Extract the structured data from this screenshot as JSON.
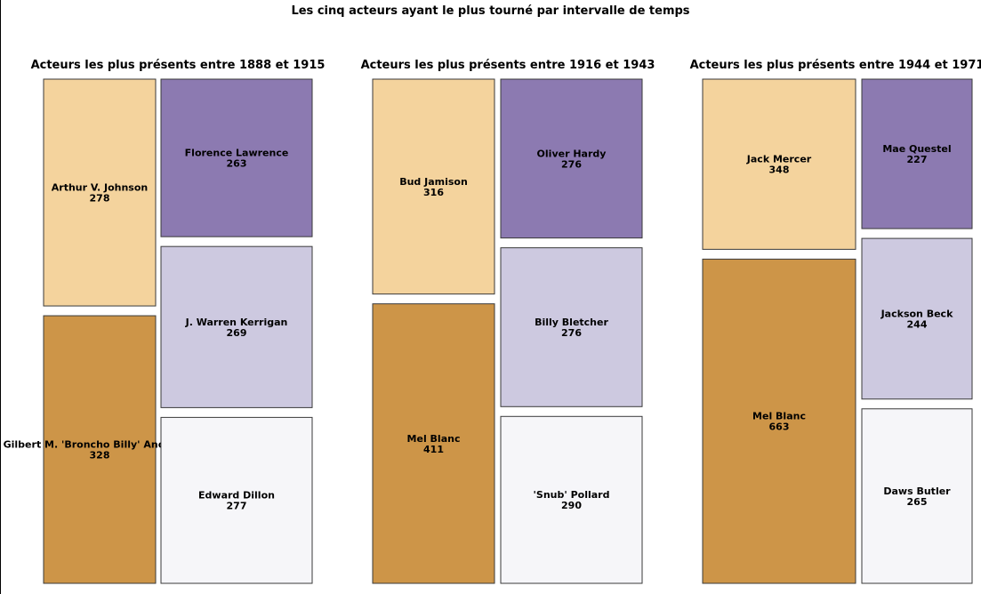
{
  "title": "Les cinq acteurs ayant le plus tourné par intervalle de temps",
  "colors": {
    "c1": "#f4d39d",
    "c2": "#8c7ab1",
    "c3": "#cdc9e0",
    "c4": "#cd9548",
    "c5": "#f6f6f9"
  },
  "chart_data": [
    {
      "type": "treemap",
      "title": "Acteurs les plus présents entre 1888 et 1915",
      "items": [
        {
          "name": "Arthur V. Johnson",
          "value": 278
        },
        {
          "name": "Florence Lawrence",
          "value": 263
        },
        {
          "name": "J. Warren Kerrigan",
          "value": 269
        },
        {
          "name": "Gilbert M. 'Broncho Billy' Anderson",
          "value": 328
        },
        {
          "name": "Edward Dillon",
          "value": 277
        }
      ]
    },
    {
      "type": "treemap",
      "title": "Acteurs les plus présents entre 1916 et 1943",
      "items": [
        {
          "name": "Bud Jamison",
          "value": 316
        },
        {
          "name": "Oliver Hardy",
          "value": 276
        },
        {
          "name": "Billy Bletcher",
          "value": 276
        },
        {
          "name": "Mel Blanc",
          "value": 411
        },
        {
          "name": "'Snub' Pollard",
          "value": 290
        }
      ]
    },
    {
      "type": "treemap",
      "title": "Acteurs les plus présents entre 1944 et 1971",
      "items": [
        {
          "name": "Jack Mercer",
          "value": 348
        },
        {
          "name": "Mae Questel",
          "value": 227
        },
        {
          "name": "Jackson Beck",
          "value": 244
        },
        {
          "name": "Mel Blanc",
          "value": 663
        },
        {
          "name": "Daws Butler",
          "value": 265
        }
      ]
    }
  ]
}
